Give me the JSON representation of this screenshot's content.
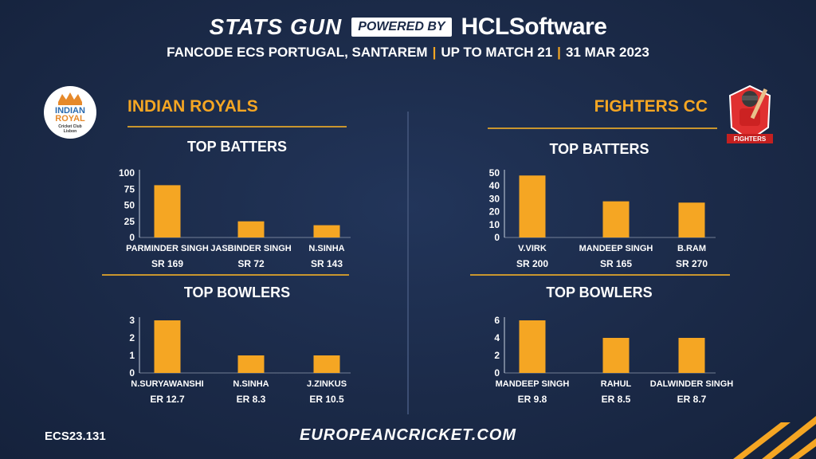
{
  "header": {
    "brand": "STATS GUN",
    "powered_by": "POWERED BY",
    "sponsor": "HCLSoftware",
    "event": "FANCODE ECS PORTUGAL, SANTAREM",
    "scope": "UP TO MATCH  21",
    "date": "31 MAR 2023"
  },
  "left_team": {
    "name": "INDIAN ROYALS",
    "logo_text": [
      "INDIAN",
      "ROYAL",
      "Cricket Club",
      "Lisbon"
    ]
  },
  "right_team": {
    "name": "FIGHTERS CC",
    "logo_text": "FIGHTERS"
  },
  "footer": {
    "code": "ECS23.131",
    "site": "EUROPEANCRICKET.COM"
  },
  "colors": {
    "background": "#1b2a48",
    "accent": "#f5a623",
    "bar": "#f5a623",
    "text": "#ffffff"
  },
  "chart_data": [
    {
      "id": "ir-batters",
      "type": "bar",
      "title": "TOP BATTERS",
      "categories": [
        "PARMINDER SINGH",
        "JASBINDER SINGH",
        "N.SINHA"
      ],
      "sublabels": [
        "SR 169",
        "SR 72",
        "SR 143"
      ],
      "values": [
        81,
        25,
        19
      ],
      "ylim": [
        0,
        100
      ],
      "yticks": [
        0,
        25,
        50,
        75,
        100
      ]
    },
    {
      "id": "ir-bowlers",
      "type": "bar",
      "title": "TOP BOWLERS",
      "categories": [
        "N.SURYAWANSHI",
        "N.SINHA",
        "J.ZINKUS"
      ],
      "sublabels": [
        "ER 12.7",
        "ER 8.3",
        "ER 10.5"
      ],
      "values": [
        3,
        1,
        1
      ],
      "ylim": [
        0,
        3
      ],
      "yticks": [
        0,
        1,
        2,
        3
      ]
    },
    {
      "id": "fc-batters",
      "type": "bar",
      "title": "TOP BATTERS",
      "categories": [
        "V.VIRK",
        "MANDEEP SINGH",
        "B.RAM"
      ],
      "sublabels": [
        "SR 200",
        "SR 165",
        "SR 270"
      ],
      "values": [
        48,
        28,
        27
      ],
      "ylim": [
        0,
        50
      ],
      "yticks": [
        0,
        10,
        20,
        30,
        40,
        50
      ]
    },
    {
      "id": "fc-bowlers",
      "type": "bar",
      "title": "TOP BOWLERS",
      "categories": [
        "MANDEEP SINGH",
        "RAHUL",
        "DALWINDER SINGH"
      ],
      "sublabels": [
        "ER 9.8",
        "ER 8.5",
        "ER 8.7"
      ],
      "values": [
        6,
        4,
        4
      ],
      "ylim": [
        0,
        6
      ],
      "yticks": [
        0,
        2,
        4,
        6
      ]
    }
  ]
}
